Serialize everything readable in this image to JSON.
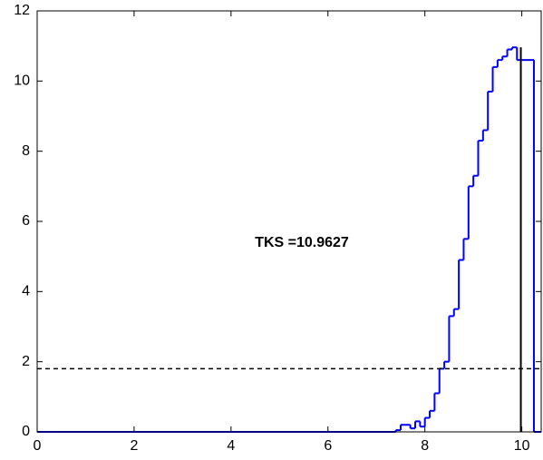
{
  "chart_data": {
    "type": "stairs",
    "annotation": "TKS =10.9627",
    "x": [
      0,
      7.4,
      7.5,
      7.7,
      7.8,
      7.9,
      8.0,
      8.1,
      8.2,
      8.3,
      8.4,
      8.5,
      8.6,
      8.7,
      8.8,
      8.9,
      9.0,
      9.1,
      9.2,
      9.3,
      9.4,
      9.5,
      9.6,
      9.7,
      9.8,
      9.9,
      10.0,
      10.25
    ],
    "series": [
      {
        "color": "#0000ff",
        "values": [
          0,
          0.05,
          0.2,
          0.1,
          0.3,
          0.15,
          0.4,
          0.6,
          1.1,
          1.8,
          2.0,
          3.3,
          3.5,
          4.9,
          5.5,
          7.0,
          7.3,
          8.3,
          8.6,
          9.7,
          10.4,
          10.6,
          10.7,
          10.9,
          10.96,
          10.6,
          10.6,
          0
        ]
      }
    ],
    "threshold": 1.8,
    "threshold_color": "#000000",
    "marker_x": 9.98,
    "marker_top": 10.9627,
    "marker_color": "#000000",
    "xlim": [
      0,
      10.4
    ],
    "ylim": [
      0,
      12
    ],
    "xticks": [
      0,
      2,
      4,
      6,
      8,
      10
    ],
    "yticks": [
      0,
      2,
      4,
      6,
      8,
      10,
      12
    ]
  }
}
